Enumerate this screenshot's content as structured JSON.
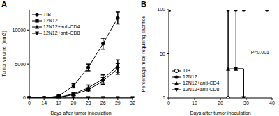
{
  "chart_data": [
    {
      "type": "line",
      "title": "A",
      "xlabel": "Days after tumor inoculation",
      "ylabel": "Tumor volume (mm3)",
      "categories": [
        "0",
        "14",
        "17",
        "20",
        "23",
        "26",
        "29",
        "32"
      ],
      "ylim": [
        0,
        13000
      ],
      "yticks": [
        0,
        5000,
        10000
      ],
      "legend": "upper left",
      "series": [
        {
          "name": "TIB",
          "color": "#000000",
          "marker": "circle",
          "values": [
            0,
            0,
            300,
            1800,
            4500,
            8000,
            11800,
            null
          ],
          "errors": [
            0,
            0,
            100,
            300,
            500,
            800,
            900,
            null
          ]
        },
        {
          "name": "12N12",
          "color": "#000000",
          "marker": "square",
          "values": [
            0,
            0,
            0,
            0,
            0,
            0,
            0,
            0
          ]
        },
        {
          "name": "12N12+anti-CD4",
          "color": "#000000",
          "marker": "triangle",
          "values": [
            0,
            0,
            100,
            600,
            1500,
            2800,
            4700,
            null
          ],
          "errors": [
            0,
            0,
            50,
            200,
            400,
            600,
            900,
            null
          ]
        },
        {
          "name": "12N12+anti-CD8",
          "color": "#000000",
          "marker": "triangle_down",
          "values": [
            0,
            0,
            80,
            500,
            1200,
            2500,
            4300,
            null
          ],
          "errors": [
            0,
            0,
            40,
            150,
            300,
            500,
            800,
            null
          ]
        }
      ]
    },
    {
      "type": "line",
      "title": "B",
      "xlabel": "Days after tumor inoculation",
      "ylabel": "Percentage mice requiring sacrifice",
      "annotations": [
        "P<0.001"
      ],
      "x": [
        0,
        23,
        26,
        29,
        38
      ],
      "xlim": [
        0,
        40
      ],
      "xticks": [
        0,
        10,
        20,
        30,
        40
      ],
      "ylim": [
        0,
        100
      ],
      "yticks": [
        0,
        50,
        100
      ],
      "legend": "lower left",
      "line_style": "step",
      "series": [
        {
          "name": "TIB",
          "color": "#000000",
          "marker": "open_circle",
          "values": [
            100,
            0,
            null,
            null,
            null
          ]
        },
        {
          "name": "12N12",
          "color": "#000000",
          "marker": "circle",
          "values": [
            100,
            100,
            100,
            100,
            100
          ]
        },
        {
          "name": "12N12+anti-CD4",
          "color": "#000000",
          "marker": "triangle",
          "values": [
            100,
            33,
            33,
            0,
            null
          ]
        },
        {
          "name": "12N12+anti-CD8",
          "color": "#000000",
          "marker": "triangle_down",
          "values": [
            100,
            100,
            33,
            0,
            null
          ]
        }
      ]
    }
  ]
}
